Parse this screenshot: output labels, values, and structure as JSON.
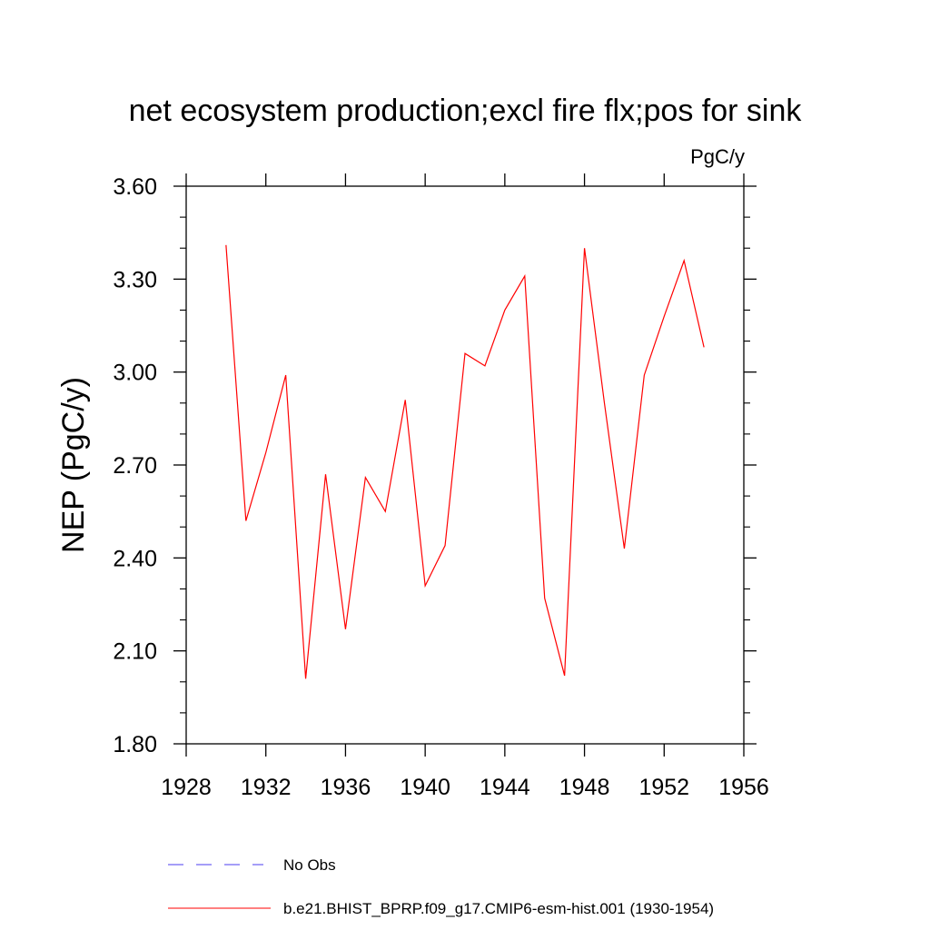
{
  "chart_data": {
    "type": "line",
    "title": "net ecosystem production;excl fire flx;pos for sink",
    "units_label": "PgC/y",
    "ylabel": "NEP  (PgC/y)",
    "xlabel": "",
    "xlim": [
      1928,
      1956
    ],
    "ylim": [
      1.8,
      3.6
    ],
    "x_ticks": [
      1928,
      1932,
      1936,
      1940,
      1944,
      1948,
      1952,
      1956
    ],
    "x_tick_labels": [
      "1928",
      "1932",
      "1936",
      "1940",
      "1944",
      "1948",
      "1952",
      "1956"
    ],
    "y_ticks": [
      1.8,
      2.1,
      2.4,
      2.7,
      3.0,
      3.3,
      3.6
    ],
    "y_tick_labels": [
      "1.80",
      "2.10",
      "2.40",
      "2.70",
      "3.00",
      "3.30",
      "3.60"
    ],
    "grid": false,
    "legend_position": "bottom",
    "series": [
      {
        "name": "b.e21.BHIST_BPRP.f09_g17.CMIP6-esm-hist.001 (1930-1954)",
        "color": "#ff0000",
        "style": "solid",
        "x": [
          1930,
          1931,
          1932,
          1933,
          1934,
          1935,
          1936,
          1937,
          1938,
          1939,
          1940,
          1941,
          1942,
          1943,
          1944,
          1945,
          1946,
          1947,
          1948,
          1949,
          1950,
          1951,
          1952,
          1953,
          1954
        ],
        "y": [
          3.41,
          2.52,
          2.74,
          2.99,
          2.01,
          2.67,
          2.17,
          2.66,
          2.55,
          2.91,
          2.31,
          2.44,
          3.06,
          3.02,
          3.2,
          3.31,
          2.27,
          2.02,
          3.4,
          2.9,
          2.43,
          2.99,
          3.18,
          3.36,
          3.08
        ]
      }
    ],
    "legend": [
      {
        "label": "No Obs",
        "color": "#4b3cf0",
        "style": "dashed"
      },
      {
        "label": "b.e21.BHIST_BPRP.f09_g17.CMIP6-esm-hist.001 (1930-1954)",
        "color": "#ff0000",
        "style": "solid"
      }
    ]
  }
}
